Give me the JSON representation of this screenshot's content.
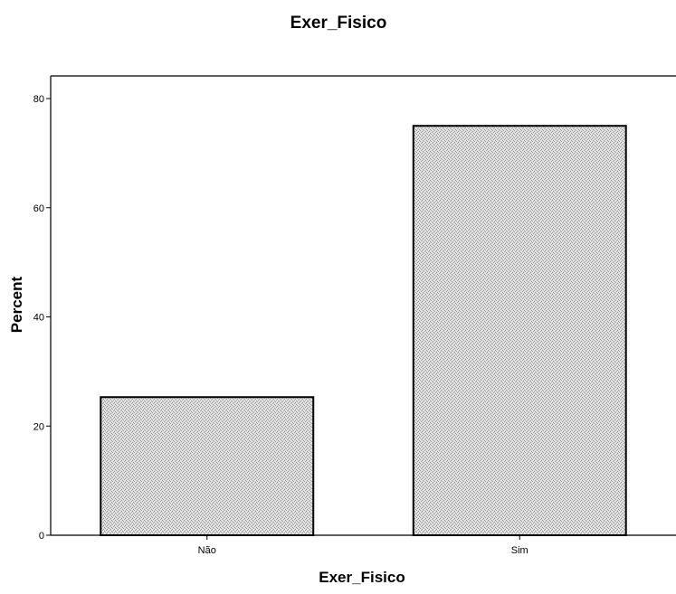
{
  "chart_data": {
    "type": "bar",
    "title": "Exer_Fisico",
    "xlabel": "Exer_Fisico",
    "ylabel": "Percent",
    "categories": [
      "Não",
      "Sim"
    ],
    "values": [
      25.3,
      75.0
    ],
    "ylim": [
      0,
      80
    ],
    "yticks": [
      0,
      20,
      40,
      60,
      80
    ],
    "grid": false,
    "legend": "none",
    "bar_fill": "#d4d4d4",
    "bar_stroke": "#000000"
  }
}
